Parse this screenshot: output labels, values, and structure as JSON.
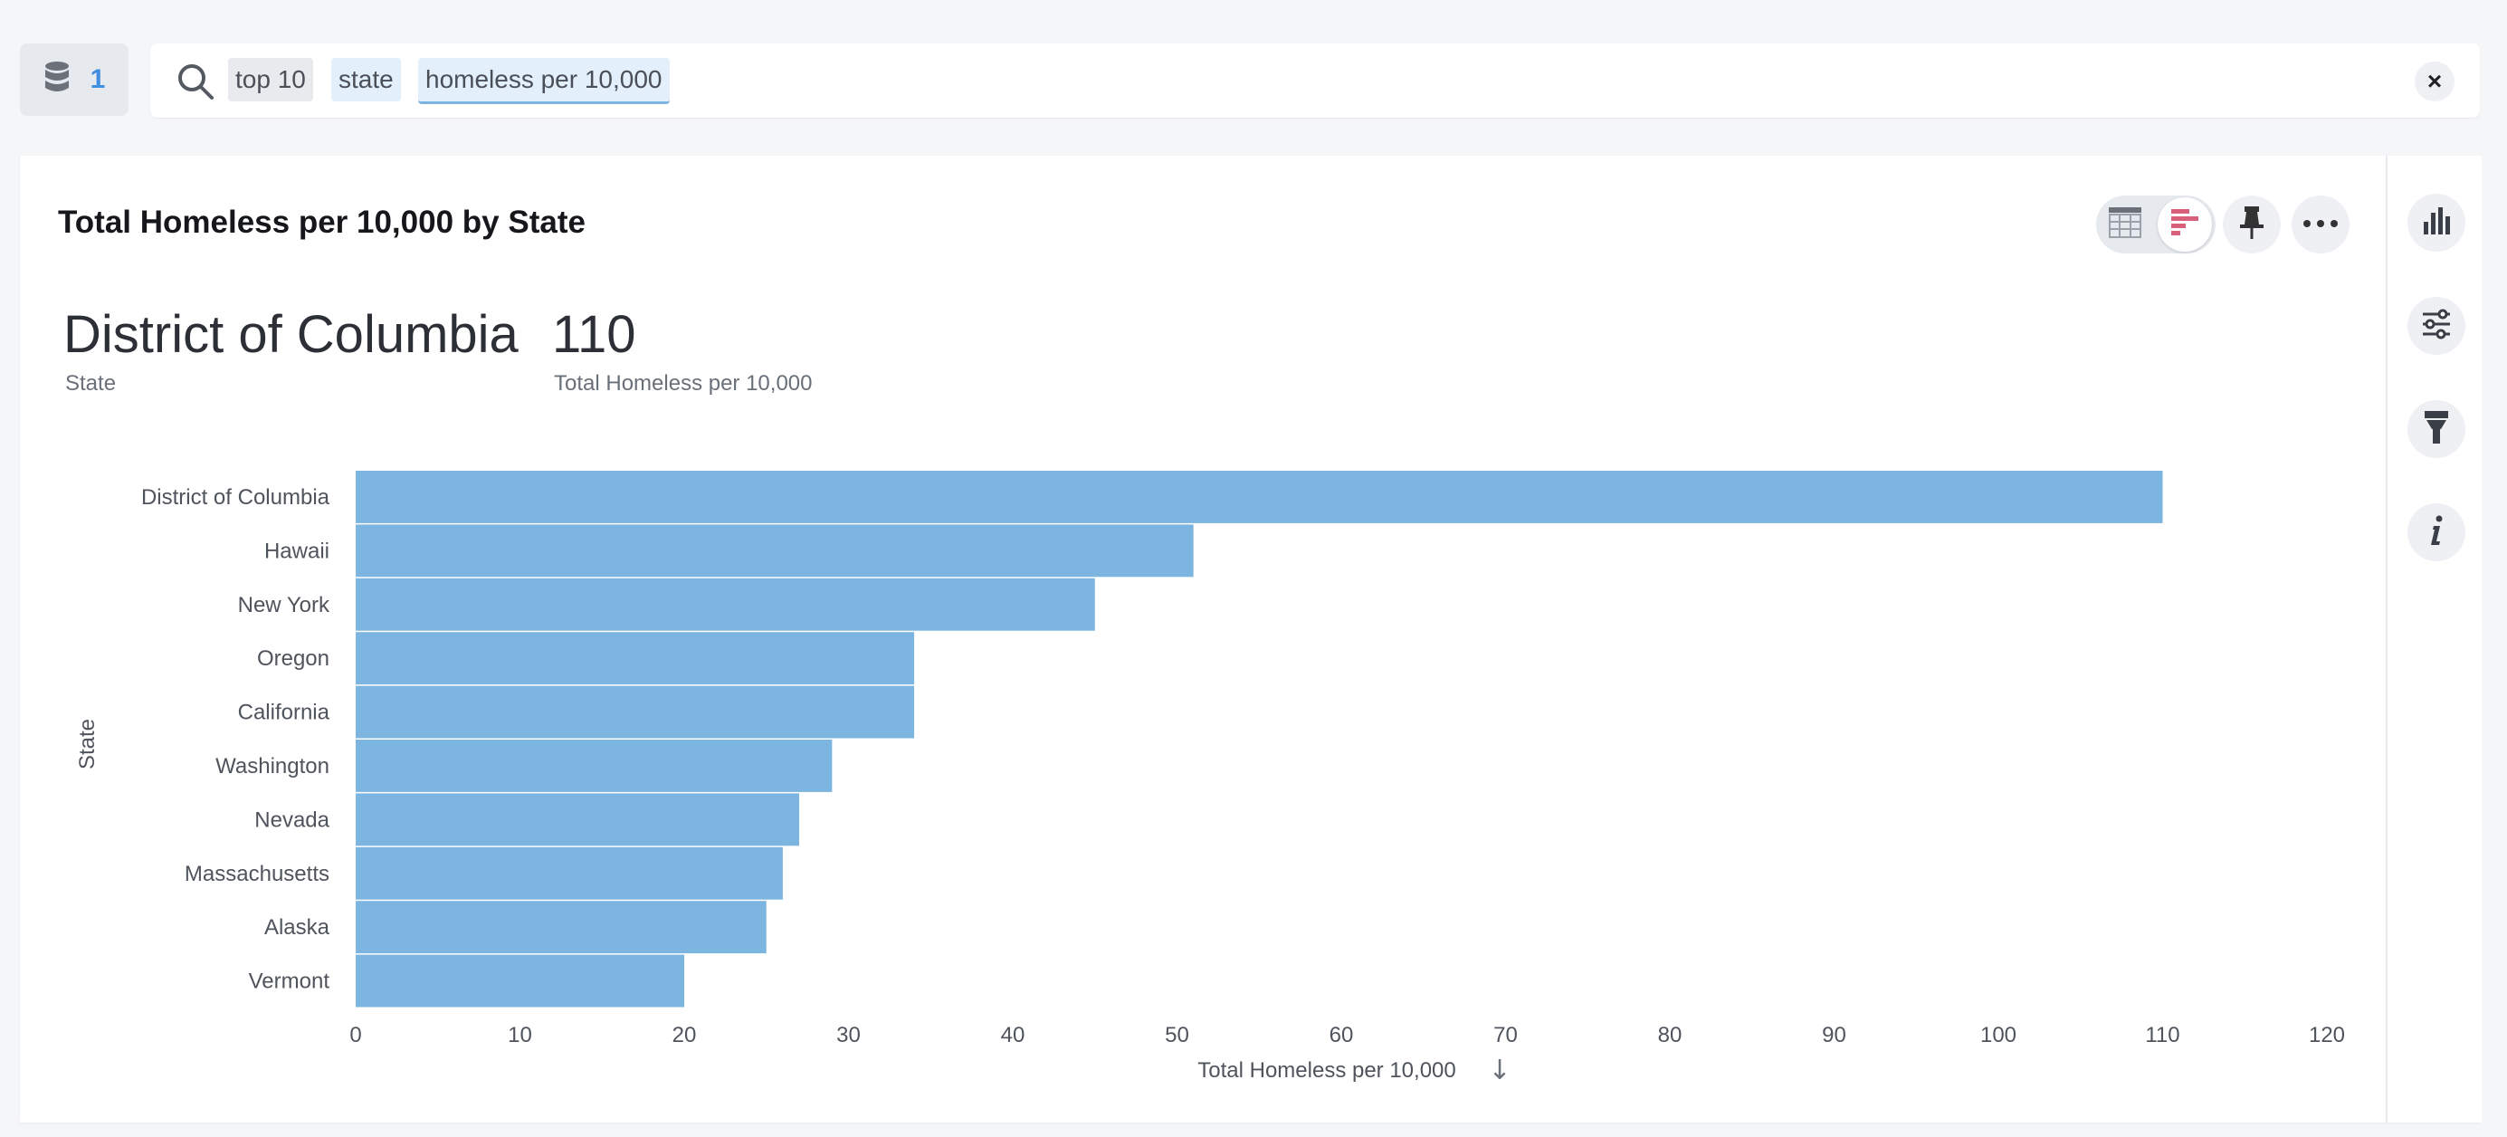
{
  "source_button": {
    "count": "1",
    "icon": "database-icon"
  },
  "search": {
    "icon": "search-icon",
    "tokens": [
      "top 10",
      "state",
      "homeless per 10,000"
    ],
    "clear_icon": "close-icon",
    "clear_label": "×"
  },
  "toolbar": {
    "table_icon": "table-icon",
    "chart_icon": "bar-chart-icon",
    "pin_icon": "pin-icon",
    "more_icon": "more-icon"
  },
  "right_rail": [
    "chart-type-icon",
    "settings-sliders-icon",
    "format-brush-icon",
    "info-icon"
  ],
  "answer": {
    "title": "Total Homeless per 10,000 by State",
    "headline": {
      "state_value": "District of Columbia",
      "state_label": "State",
      "measure_value": "110",
      "measure_label": "Total Homeless per 10,000"
    }
  },
  "colors": {
    "bar": "#7cb5df",
    "accent": "#3f8ee0",
    "chart_icon_accent": "#d9607a"
  },
  "chart_data": {
    "type": "bar",
    "orientation": "horizontal",
    "categories": [
      "District of Columbia",
      "Hawaii",
      "New York",
      "Oregon",
      "California",
      "Washington",
      "Nevada",
      "Massachusetts",
      "Alaska",
      "Vermont"
    ],
    "values": [
      110,
      51,
      45,
      34,
      34,
      29,
      27,
      26,
      25,
      20
    ],
    "xlabel": "Total Homeless per 10,000",
    "ylabel": "State",
    "xlim": [
      0,
      120
    ],
    "xticks": [
      "0",
      "10",
      "20",
      "30",
      "40",
      "50",
      "60",
      "70",
      "80",
      "90",
      "100",
      "110",
      "120"
    ],
    "sort_indicator": "↓",
    "grid": false
  }
}
